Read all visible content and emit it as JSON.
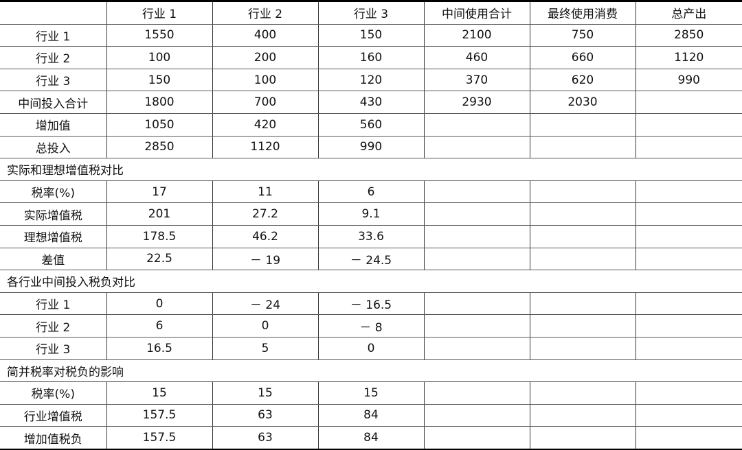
{
  "header": [
    "",
    "行业 1",
    "行业 2",
    "行业 3",
    "中间使用合计",
    "最终使用消费",
    "总产出"
  ],
  "io_rows": [
    [
      "行业 1",
      "1550",
      "400",
      "150",
      "2100",
      "750",
      "2850"
    ],
    [
      "行业 2",
      "100",
      "200",
      "160",
      "460",
      "660",
      "1120"
    ],
    [
      "行业 3",
      "150",
      "100",
      "120",
      "370",
      "620",
      "990"
    ],
    [
      "中间投入合计",
      "1800",
      "700",
      "430",
      "2930",
      "2030",
      ""
    ],
    [
      "增加值",
      "1050",
      "420",
      "560",
      "",
      "",
      ""
    ],
    [
      "总投入",
      "2850",
      "1120",
      "990",
      "",
      "",
      ""
    ]
  ],
  "sections": [
    {
      "title": "实际和理想增值税对比",
      "rows": [
        [
          "税率(%)",
          "17",
          "11",
          "6",
          "",
          "",
          ""
        ],
        [
          "实际增值税",
          "201",
          "27.2",
          "9.1",
          "",
          "",
          ""
        ],
        [
          "理想增值税",
          "178.5",
          "46.2",
          "33.6",
          "",
          "",
          ""
        ],
        [
          "差值",
          "22.5",
          "－ 19",
          "－ 24.5",
          "",
          "",
          ""
        ]
      ]
    },
    {
      "title": "各行业中间投入税负对比",
      "rows": [
        [
          "行业 1",
          "0",
          "－ 24",
          "－ 16.5",
          "",
          "",
          ""
        ],
        [
          "行业 2",
          "6",
          "0",
          "－ 8",
          "",
          "",
          ""
        ],
        [
          "行业 3",
          "16.5",
          "5",
          "0",
          "",
          "",
          ""
        ]
      ]
    },
    {
      "title": "简并税率对税负的影响",
      "rows": [
        [
          "税率(%)",
          "15",
          "15",
          "15",
          "",
          "",
          ""
        ],
        [
          "行业增值税",
          "157.5",
          "63",
          "84",
          "",
          "",
          ""
        ],
        [
          "增加值税负",
          "157.5",
          "63",
          "84",
          "",
          "",
          ""
        ]
      ]
    }
  ]
}
